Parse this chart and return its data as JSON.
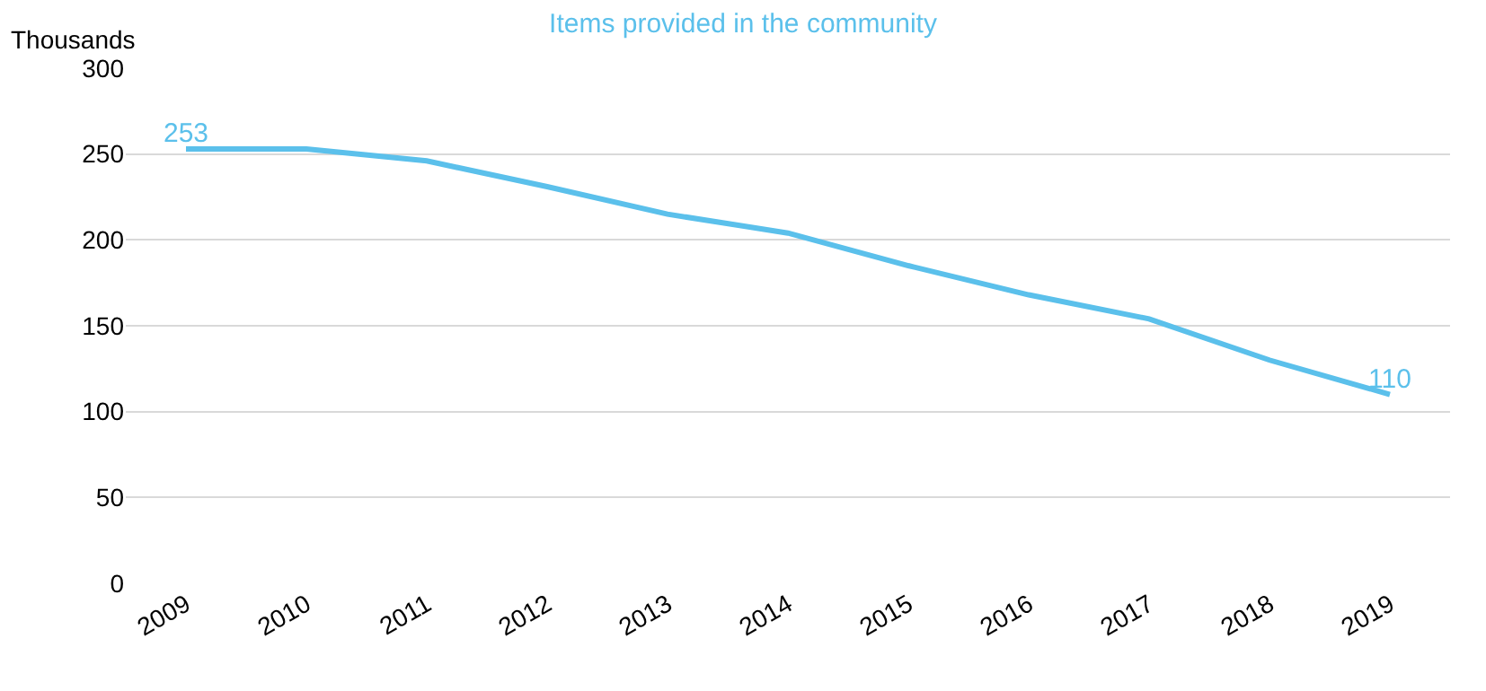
{
  "chart_data": {
    "type": "line",
    "title": "Items provided in the community",
    "ylabel": "Thousands",
    "categories": [
      "2009",
      "2010",
      "2011",
      "2012",
      "2013",
      "2014",
      "2015",
      "2016",
      "2017",
      "2018",
      "2019"
    ],
    "series": [
      {
        "color": "#5bc0eb",
        "values": [
          253,
          253,
          246,
          231,
          215,
          204,
          185,
          168,
          154,
          130,
          110
        ],
        "value_labels": [
          "253",
          null,
          null,
          null,
          null,
          null,
          null,
          null,
          null,
          null,
          "110"
        ]
      }
    ],
    "ylim": [
      0,
      300
    ],
    "yticks": [
      0,
      50,
      100,
      150,
      200,
      250,
      300
    ],
    "grid": "y",
    "legend": false,
    "marker": "none",
    "line_style": "solid"
  }
}
